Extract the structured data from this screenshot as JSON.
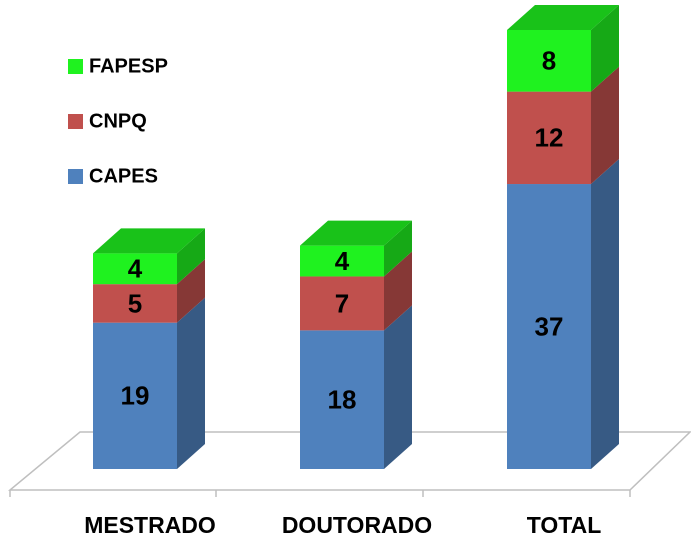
{
  "chart_data": {
    "type": "bar3d-stacked",
    "categories": [
      "MESTRADO",
      "DOUTORADO",
      "TOTAL"
    ],
    "series": [
      {
        "name": "CAPES",
        "color": "#4f81bd",
        "values": [
          19,
          18,
          37
        ]
      },
      {
        "name": "CNPQ",
        "color": "#c0504d",
        "values": [
          5,
          7,
          12
        ]
      },
      {
        "name": "FAPESP",
        "color": "#1ff21f",
        "values": [
          4,
          4,
          8
        ]
      }
    ]
  }
}
